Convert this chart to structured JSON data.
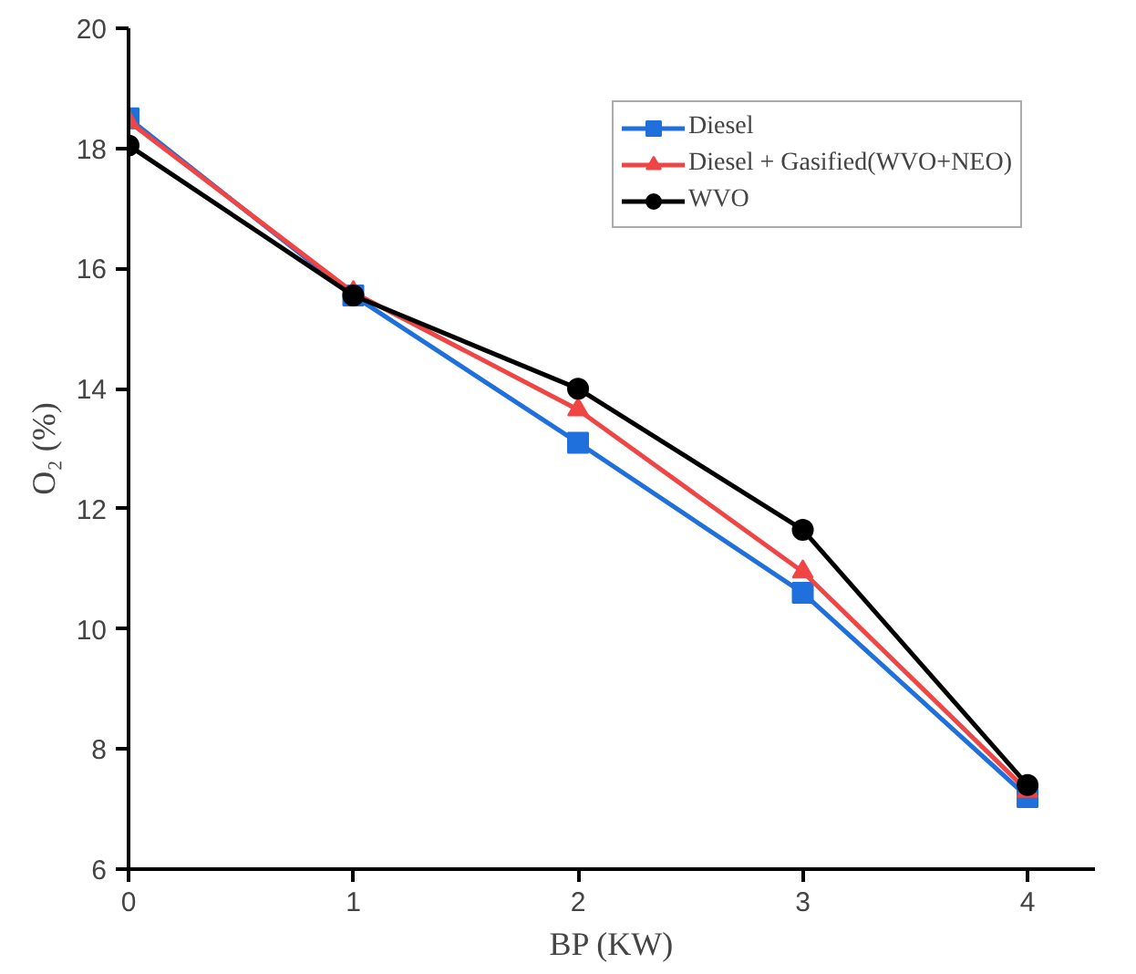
{
  "chart_data": {
    "type": "line",
    "xlabel": "BP (KW)",
    "ylabel": "O₂ (%)",
    "x": [
      0,
      1,
      2,
      3,
      4
    ],
    "series": [
      {
        "name": "Diesel",
        "color": "#1f6fdc",
        "marker": "square",
        "values": [
          18.5,
          15.55,
          13.1,
          10.6,
          7.2
        ]
      },
      {
        "name": "Diesel + Gasified(WVO+NEO)",
        "color": "#f04545",
        "marker": "triangle",
        "values": [
          18.45,
          15.6,
          13.65,
          10.95,
          7.3
        ]
      },
      {
        "name": "WVO",
        "color": "#000000",
        "marker": "circle",
        "values": [
          18.05,
          15.55,
          14.0,
          11.65,
          7.4
        ]
      }
    ],
    "xlim": [
      0,
      4.3
    ],
    "ylim": [
      6,
      20
    ],
    "xticks": [
      0,
      1,
      2,
      3,
      4
    ],
    "yticks": [
      6,
      8,
      10,
      12,
      14,
      16,
      18,
      20
    ],
    "grid": false,
    "legend": "top right",
    "line_style": "solid"
  }
}
